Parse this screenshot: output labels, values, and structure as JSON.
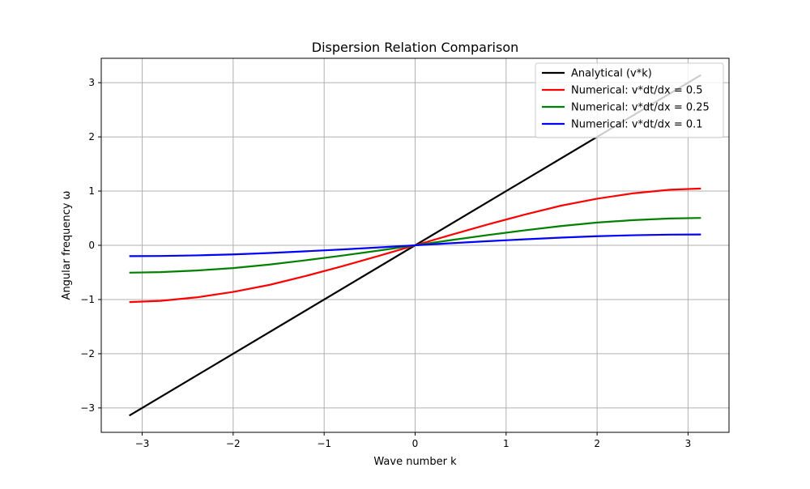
{
  "chart_data": {
    "type": "line",
    "title": "Dispersion Relation Comparison",
    "xlabel": "Wave number k",
    "ylabel": "Angular frequency ω",
    "xlim": [
      -3.45,
      3.45
    ],
    "ylim": [
      -3.45,
      3.45
    ],
    "xticks": [
      -3,
      -2,
      -1,
      0,
      1,
      2,
      3
    ],
    "xtick_labels": [
      "−3",
      "−2",
      "−1",
      "0",
      "1",
      "2",
      "3"
    ],
    "yticks": [
      -3,
      -2,
      -1,
      0,
      1,
      2,
      3
    ],
    "ytick_labels": [
      "−3",
      "−2",
      "−1",
      "0",
      "1",
      "2",
      "3"
    ],
    "grid": true,
    "legend_position": "top-right",
    "x_range": [
      -3.14159,
      3.14159
    ],
    "series": [
      {
        "name": "Analytical (v*k)",
        "color": "#000000",
        "x": [
          -3.14159,
          3.14159
        ],
        "y": [
          -3.14159,
          3.14159
        ]
      },
      {
        "name": "Numerical: v*dt/dx = 0.5",
        "color": "#ff0000",
        "x": [
          -3.14159,
          -2.8,
          -2.4,
          -2.0,
          -1.6,
          -1.2,
          -0.8,
          -0.4,
          0,
          0.4,
          0.8,
          1.2,
          1.6,
          2.0,
          2.4,
          2.8,
          3.14159
        ],
        "y": [
          -1.047,
          -1.025,
          -0.96,
          -0.86,
          -0.73,
          -0.565,
          -0.385,
          -0.195,
          0,
          0.195,
          0.385,
          0.565,
          0.73,
          0.86,
          0.96,
          1.025,
          1.047
        ]
      },
      {
        "name": "Numerical: v*dt/dx = 0.25",
        "color": "#008000",
        "x": [
          -3.14159,
          -2.8,
          -2.4,
          -2.0,
          -1.6,
          -1.2,
          -0.8,
          -0.4,
          0,
          0.4,
          0.8,
          1.2,
          1.6,
          2.0,
          2.4,
          2.8,
          3.14159
        ],
        "y": [
          -0.505,
          -0.495,
          -0.465,
          -0.42,
          -0.355,
          -0.275,
          -0.19,
          -0.097,
          0,
          0.097,
          0.19,
          0.275,
          0.355,
          0.42,
          0.465,
          0.495,
          0.505
        ]
      },
      {
        "name": "Numerical: v*dt/dx = 0.1",
        "color": "#0000ff",
        "x": [
          -3.14159,
          -2.8,
          -2.4,
          -2.0,
          -1.6,
          -1.2,
          -0.8,
          -0.4,
          0,
          0.4,
          0.8,
          1.2,
          1.6,
          2.0,
          2.4,
          2.8,
          3.14159
        ],
        "y": [
          -0.2,
          -0.197,
          -0.186,
          -0.168,
          -0.142,
          -0.11,
          -0.076,
          -0.039,
          0,
          0.039,
          0.076,
          0.11,
          0.142,
          0.168,
          0.186,
          0.197,
          0.2
        ]
      }
    ]
  }
}
